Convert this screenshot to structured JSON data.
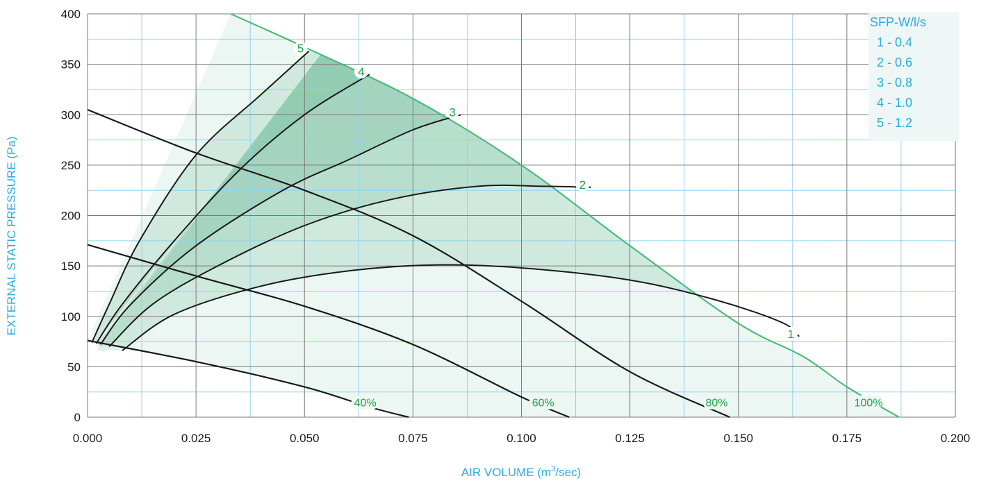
{
  "chart_data": {
    "type": "line",
    "title": "",
    "xlabel": "AIR VOLUME (m",
    "xlabel_sup": "3",
    "xlabel_tail": "/sec)",
    "ylabel": "EXTERNAL STATIC PRESSURE (Pa)",
    "xlim": [
      0,
      0.2
    ],
    "ylim": [
      0,
      400
    ],
    "x_ticks": [
      0,
      0.025,
      0.05,
      0.075,
      0.1,
      0.125,
      0.15,
      0.175,
      0.2
    ],
    "x_tick_labels": [
      "0.000",
      "0.025",
      "0.050",
      "0.075",
      "0.100",
      "0.125",
      "0.150",
      "0.175",
      "0.200"
    ],
    "y_ticks": [
      0,
      50,
      100,
      150,
      200,
      250,
      300,
      350,
      400
    ],
    "y_tick_labels": [
      "0",
      "50",
      "100",
      "150",
      "200",
      "250",
      "300",
      "350",
      "400"
    ],
    "grid": true,
    "legend": {
      "placement": "top-right",
      "title": "SFP-W/l/s",
      "entries": [
        "1 - 0.4",
        "2 - 0.6",
        "3 - 0.8",
        "4 - 1.0",
        "5 - 1.2"
      ]
    },
    "colors": {
      "axis_text": "#29abe2",
      "accent_green": "#1fa34a",
      "max_curve": "#3dba6e",
      "grid_major": "#7a7a7a",
      "grid_minor": "#8fd3ef",
      "curve": "#1a1a1a"
    },
    "fan_curves": [
      {
        "label": "100%",
        "points": [
          [
            0.033,
            400
          ],
          [
            0.05,
            367
          ],
          [
            0.075,
            316
          ],
          [
            0.1,
            250
          ],
          [
            0.125,
            170
          ],
          [
            0.15,
            93
          ],
          [
            0.165,
            60
          ],
          [
            0.175,
            30
          ],
          [
            0.187,
            0
          ]
        ]
      },
      {
        "label": "80%",
        "points": [
          [
            0,
            305
          ],
          [
            0.025,
            262
          ],
          [
            0.05,
            225
          ],
          [
            0.075,
            180
          ],
          [
            0.1,
            115
          ],
          [
            0.125,
            45
          ],
          [
            0.148,
            0
          ]
        ]
      },
      {
        "label": "60%",
        "points": [
          [
            0,
            171
          ],
          [
            0.025,
            140
          ],
          [
            0.05,
            110
          ],
          [
            0.075,
            72
          ],
          [
            0.1,
            20
          ],
          [
            0.111,
            0
          ]
        ]
      },
      {
        "label": "40%",
        "points": [
          [
            0,
            76
          ],
          [
            0.025,
            55
          ],
          [
            0.05,
            30
          ],
          [
            0.065,
            10
          ],
          [
            0.074,
            0
          ]
        ]
      }
    ],
    "sfp_curves": [
      {
        "label": "1",
        "points": [
          [
            0.008,
            66
          ],
          [
            0.02,
            102
          ],
          [
            0.04,
            130
          ],
          [
            0.06,
            145
          ],
          [
            0.08,
            151
          ],
          [
            0.1,
            148
          ],
          [
            0.125,
            136
          ],
          [
            0.145,
            116
          ],
          [
            0.16,
            94
          ],
          [
            0.164,
            80
          ]
        ]
      },
      {
        "label": "2",
        "points": [
          [
            0.005,
            70
          ],
          [
            0.015,
            112
          ],
          [
            0.03,
            150
          ],
          [
            0.05,
            190
          ],
          [
            0.07,
            216
          ],
          [
            0.09,
            229
          ],
          [
            0.105,
            229
          ],
          [
            0.116,
            228
          ]
        ]
      },
      {
        "label": "3",
        "points": [
          [
            0.003,
            72
          ],
          [
            0.01,
            112
          ],
          [
            0.025,
            170
          ],
          [
            0.045,
            225
          ],
          [
            0.06,
            255
          ],
          [
            0.075,
            285
          ],
          [
            0.086,
            300
          ]
        ]
      },
      {
        "label": "4",
        "points": [
          [
            0.002,
            73
          ],
          [
            0.008,
            112
          ],
          [
            0.02,
            175
          ],
          [
            0.035,
            245
          ],
          [
            0.05,
            300
          ],
          [
            0.065,
            340
          ]
        ]
      },
      {
        "label": "5",
        "points": [
          [
            0.001,
            74
          ],
          [
            0.005,
            112
          ],
          [
            0.012,
            175
          ],
          [
            0.025,
            260
          ],
          [
            0.04,
            320
          ],
          [
            0.051,
            363
          ]
        ]
      }
    ]
  }
}
